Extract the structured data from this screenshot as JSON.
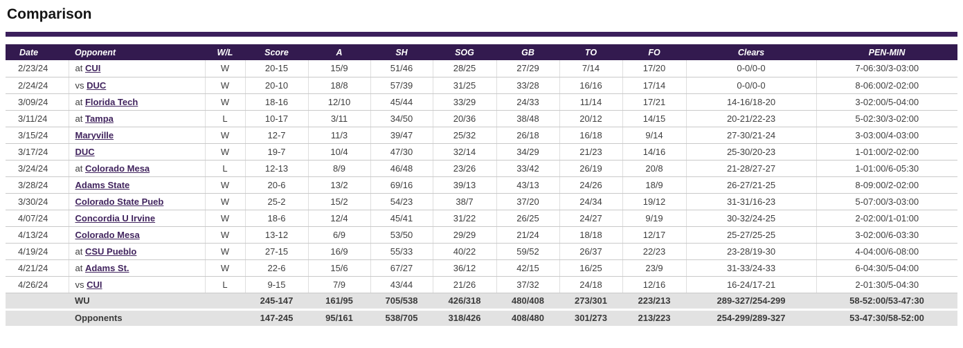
{
  "page": {
    "title": "Comparison"
  },
  "colors": {
    "header_bg": "#331a4f",
    "divider_purple": "#3b1f5c",
    "link_purple": "#41245e",
    "totals_row_bg": "#e2e2e2",
    "row_border": "#c9c9c9"
  },
  "table": {
    "columns": [
      {
        "key": "date",
        "label": "Date"
      },
      {
        "key": "opponent",
        "label": "Opponent"
      },
      {
        "key": "wl",
        "label": "W/L"
      },
      {
        "key": "score",
        "label": "Score"
      },
      {
        "key": "a",
        "label": "A"
      },
      {
        "key": "sh",
        "label": "SH"
      },
      {
        "key": "sog",
        "label": "SOG"
      },
      {
        "key": "gb",
        "label": "GB"
      },
      {
        "key": "to",
        "label": "TO"
      },
      {
        "key": "fo",
        "label": "FO"
      },
      {
        "key": "clears",
        "label": "Clears"
      },
      {
        "key": "pen",
        "label": "PEN-MIN"
      }
    ],
    "rows": [
      {
        "date": "2/23/24",
        "prefix": "at ",
        "opponent": "CUI",
        "wl": "W",
        "score": "20-15",
        "a": "15/9",
        "sh": "51/46",
        "sog": "28/25",
        "gb": "27/29",
        "to": "7/14",
        "fo": "17/20",
        "clears": "0-0/0-0",
        "pen": "7-06:30/3-03:00"
      },
      {
        "date": "2/24/24",
        "prefix": "vs ",
        "opponent": "DUC",
        "wl": "W",
        "score": "20-10",
        "a": "18/8",
        "sh": "57/39",
        "sog": "31/25",
        "gb": "33/28",
        "to": "16/16",
        "fo": "17/14",
        "clears": "0-0/0-0",
        "pen": "8-06:00/2-02:00"
      },
      {
        "date": "3/09/24",
        "prefix": "at ",
        "opponent": "Florida Tech",
        "wl": "W",
        "score": "18-16",
        "a": "12/10",
        "sh": "45/44",
        "sog": "33/29",
        "gb": "24/33",
        "to": "11/14",
        "fo": "17/21",
        "clears": "14-16/18-20",
        "pen": "3-02:00/5-04:00"
      },
      {
        "date": "3/11/24",
        "prefix": "at ",
        "opponent": "Tampa",
        "wl": "L",
        "score": "10-17",
        "a": "3/11",
        "sh": "34/50",
        "sog": "20/36",
        "gb": "38/48",
        "to": "20/12",
        "fo": "14/15",
        "clears": "20-21/22-23",
        "pen": "5-02:30/3-02:00"
      },
      {
        "date": "3/15/24",
        "prefix": "",
        "opponent": "Maryville",
        "wl": "W",
        "score": "12-7",
        "a": "11/3",
        "sh": "39/47",
        "sog": "25/32",
        "gb": "26/18",
        "to": "16/18",
        "fo": "9/14",
        "clears": "27-30/21-24",
        "pen": "3-03:00/4-03:00"
      },
      {
        "date": "3/17/24",
        "prefix": "",
        "opponent": "DUC",
        "wl": "W",
        "score": "19-7",
        "a": "10/4",
        "sh": "47/30",
        "sog": "32/14",
        "gb": "34/29",
        "to": "21/23",
        "fo": "14/16",
        "clears": "25-30/20-23",
        "pen": "1-01:00/2-02:00"
      },
      {
        "date": "3/24/24",
        "prefix": "at ",
        "opponent": "Colorado Mesa",
        "wl": "L",
        "score": "12-13",
        "a": "8/9",
        "sh": "46/48",
        "sog": "23/26",
        "gb": "33/42",
        "to": "26/19",
        "fo": "20/8",
        "clears": "21-28/27-27",
        "pen": "1-01:00/6-05:30"
      },
      {
        "date": "3/28/24",
        "prefix": "",
        "opponent": "Adams State",
        "wl": "W",
        "score": "20-6",
        "a": "13/2",
        "sh": "69/16",
        "sog": "39/13",
        "gb": "43/13",
        "to": "24/26",
        "fo": "18/9",
        "clears": "26-27/21-25",
        "pen": "8-09:00/2-02:00"
      },
      {
        "date": "3/30/24",
        "prefix": "",
        "opponent": "Colorado State Pueb",
        "wl": "W",
        "score": "25-2",
        "a": "15/2",
        "sh": "54/23",
        "sog": "38/7",
        "gb": "37/20",
        "to": "24/34",
        "fo": "19/12",
        "clears": "31-31/16-23",
        "pen": "5-07:00/3-03:00"
      },
      {
        "date": "4/07/24",
        "prefix": "",
        "opponent": "Concordia U Irvine",
        "wl": "W",
        "score": "18-6",
        "a": "12/4",
        "sh": "45/41",
        "sog": "31/22",
        "gb": "26/25",
        "to": "24/27",
        "fo": "9/19",
        "clears": "30-32/24-25",
        "pen": "2-02:00/1-01:00"
      },
      {
        "date": "4/13/24",
        "prefix": "",
        "opponent": "Colorado Mesa",
        "wl": "W",
        "score": "13-12",
        "a": "6/9",
        "sh": "53/50",
        "sog": "29/29",
        "gb": "21/24",
        "to": "18/18",
        "fo": "12/17",
        "clears": "25-27/25-25",
        "pen": "3-02:00/6-03:30"
      },
      {
        "date": "4/19/24",
        "prefix": "at ",
        "opponent": "CSU Pueblo",
        "wl": "W",
        "score": "27-15",
        "a": "16/9",
        "sh": "55/33",
        "sog": "40/22",
        "gb": "59/52",
        "to": "26/37",
        "fo": "22/23",
        "clears": "23-28/19-30",
        "pen": "4-04:00/6-08:00"
      },
      {
        "date": "4/21/24",
        "prefix": "at ",
        "opponent": "Adams St.",
        "wl": "W",
        "score": "22-6",
        "a": "15/6",
        "sh": "67/27",
        "sog": "36/12",
        "gb": "42/15",
        "to": "16/25",
        "fo": "23/9",
        "clears": "31-33/24-33",
        "pen": "6-04:30/5-04:00"
      },
      {
        "date": "4/26/24",
        "prefix": "vs ",
        "opponent": "CUI",
        "wl": "L",
        "score": "9-15",
        "a": "7/9",
        "sh": "43/44",
        "sog": "21/26",
        "gb": "37/32",
        "to": "24/18",
        "fo": "12/16",
        "clears": "16-24/17-21",
        "pen": "2-01:30/5-04:30"
      }
    ],
    "totals": [
      {
        "label": "WU",
        "score": "245-147",
        "a": "161/95",
        "sh": "705/538",
        "sog": "426/318",
        "gb": "480/408",
        "to": "273/301",
        "fo": "223/213",
        "clears": "289-327/254-299",
        "pen": "58-52:00/53-47:30"
      },
      {
        "label": "Opponents",
        "score": "147-245",
        "a": "95/161",
        "sh": "538/705",
        "sog": "318/426",
        "gb": "408/480",
        "to": "301/273",
        "fo": "213/223",
        "clears": "254-299/289-327",
        "pen": "53-47:30/58-52:00"
      }
    ]
  }
}
